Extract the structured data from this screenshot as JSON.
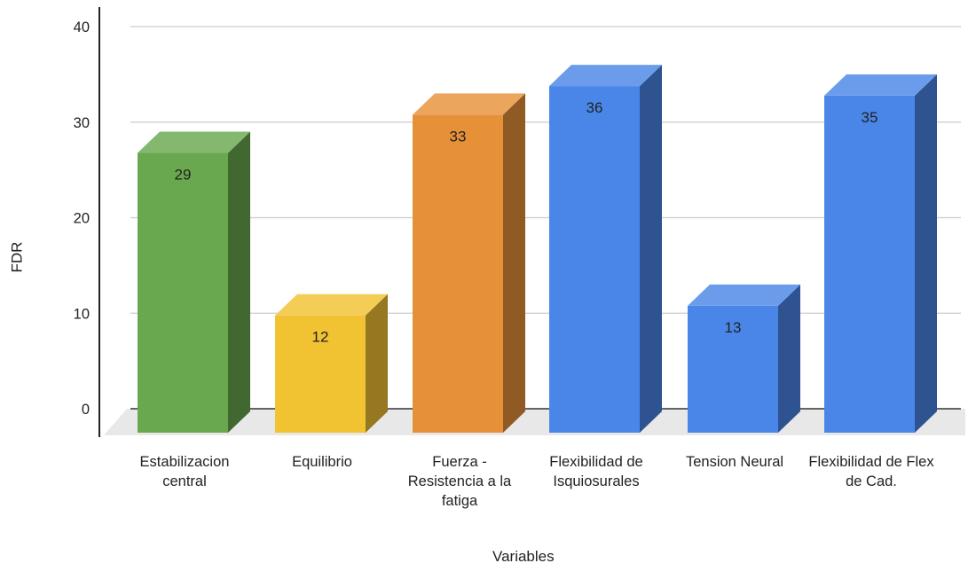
{
  "chart_data": {
    "type": "bar",
    "style": "3d",
    "title": "",
    "xlabel": "Variables",
    "ylabel": "FDR",
    "ylim": [
      0,
      40
    ],
    "yticks": [
      0,
      10,
      20,
      30,
      40
    ],
    "grid": true,
    "legend": "none",
    "categories": [
      "Estabilizacion central",
      "Equilibrio",
      "Fuerza - Resistencia a la fatiga",
      "Flexibilidad de Isquiosurales",
      "Tension Neural",
      "Flexibilidad de Flex de Cad."
    ],
    "values": [
      29,
      12,
      33,
      36,
      13,
      35
    ],
    "colors": [
      "#6aa84f",
      "#f1c232",
      "#e69138",
      "#4a86e8",
      "#4a86e8",
      "#4a86e8"
    ]
  }
}
